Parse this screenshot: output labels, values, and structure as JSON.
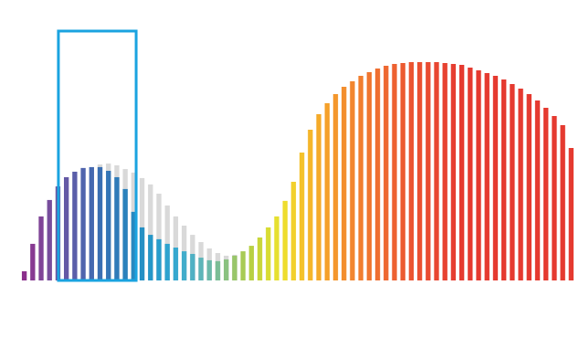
{
  "chart_data": {
    "type": "bar",
    "categories": [
      null,
      null,
      null,
      null,
      null,
      null,
      null,
      null,
      null,
      null,
      null,
      null,
      null,
      null,
      null,
      null,
      null,
      null,
      null,
      null,
      null,
      null,
      null,
      null,
      null,
      null,
      null,
      null,
      null,
      null,
      null,
      null,
      null,
      null,
      null,
      null,
      null,
      null,
      null,
      null,
      null,
      null,
      null,
      null,
      null,
      null,
      null,
      null,
      null,
      null,
      null,
      null,
      null,
      null,
      null,
      null,
      null,
      null,
      null,
      null,
      null,
      null,
      null,
      null,
      null,
      null
    ],
    "series": [
      {
        "color": "#d9d9d9",
        "values": [
          null,
          null,
          null,
          null,
          null,
          null,
          null,
          null,
          null,
          52.9,
          53.3,
          52.5,
          50.8,
          49.2,
          46.7,
          43.8,
          39.6,
          34.2,
          29.2,
          25,
          20.8,
          17.5,
          14.6,
          12.5,
          11.3,
          11.7,
          null,
          null,
          null,
          null,
          null,
          null,
          null,
          null,
          null,
          null,
          null,
          null,
          null,
          null,
          null,
          null,
          null,
          null,
          null,
          null,
          null,
          null,
          null,
          null,
          null,
          null,
          null,
          null,
          null,
          null,
          null,
          null,
          null,
          null,
          null,
          null,
          null,
          null,
          null,
          null
        ]
      },
      {
        "colors": [
          "#8b2f8c",
          "#873a92",
          "#7f4497",
          "#774d9c",
          "#6d56a1",
          "#6459a5",
          "#5a5ea9",
          "#4f64ad",
          "#4569b0",
          "#3a6fb3",
          "#3475b6",
          "#2f7bb9",
          "#2b82bc",
          "#2789c0",
          "#2590c4",
          "#2597c8",
          "#289dcc",
          "#2ea3cf",
          "#36a8cf",
          "#42adcb",
          "#4fb1c4",
          "#5db5b9",
          "#6bb9aa",
          "#7abd96",
          "#8ac280",
          "#99c66a",
          "#a8cb55",
          "#b8d044",
          "#c8d63a",
          "#d8dc33",
          "#e6e030",
          "#eedd2f",
          "#f2d02d",
          "#f4c22b",
          "#f5b62a",
          "#f5ab2a",
          "#f5a12b",
          "#f4972d",
          "#f38e2e",
          "#f2862f",
          "#f17e30",
          "#f07630",
          "#ef6f31",
          "#ee6831",
          "#ed6131",
          "#ec5b31",
          "#eb5531",
          "#ea5031",
          "#e94b31",
          "#e84631",
          "#e74231",
          "#e63e31",
          "#e53a30",
          "#e53a30",
          "#e53a30",
          "#e53a30",
          "#e53a30",
          "#e53a30",
          "#e53a30",
          "#e53a30",
          "#e53a30",
          "#e53a30",
          "#e53a30",
          "#e53a30",
          "#e53a30",
          "#e53a30"
        ],
        "values": [
          4.2,
          16.7,
          29.2,
          36.7,
          42.9,
          47.1,
          49.6,
          51.3,
          51.7,
          51.7,
          50,
          47.1,
          41.7,
          31.3,
          24.2,
          20.8,
          18.8,
          16.7,
          15,
          13.3,
          12.1,
          10.4,
          9.2,
          8.8,
          9.6,
          11.3,
          13.3,
          15.8,
          19.6,
          24.2,
          29.2,
          36.3,
          45,
          58.3,
          68.8,
          75.8,
          80.8,
          85,
          88.3,
          90.8,
          93.3,
          95,
          96.7,
          97.9,
          98.8,
          99.2,
          99.6,
          99.6,
          99.6,
          99.6,
          99.2,
          98.8,
          98.3,
          97.1,
          95.8,
          94.6,
          93.3,
          91.7,
          89.6,
          87.5,
          85,
          82.1,
          78.8,
          75,
          70.8,
          60.4
        ]
      }
    ],
    "ylim": [
      0,
      100
    ],
    "stacked": false,
    "grid": false,
    "tick_labels": false
  }
}
